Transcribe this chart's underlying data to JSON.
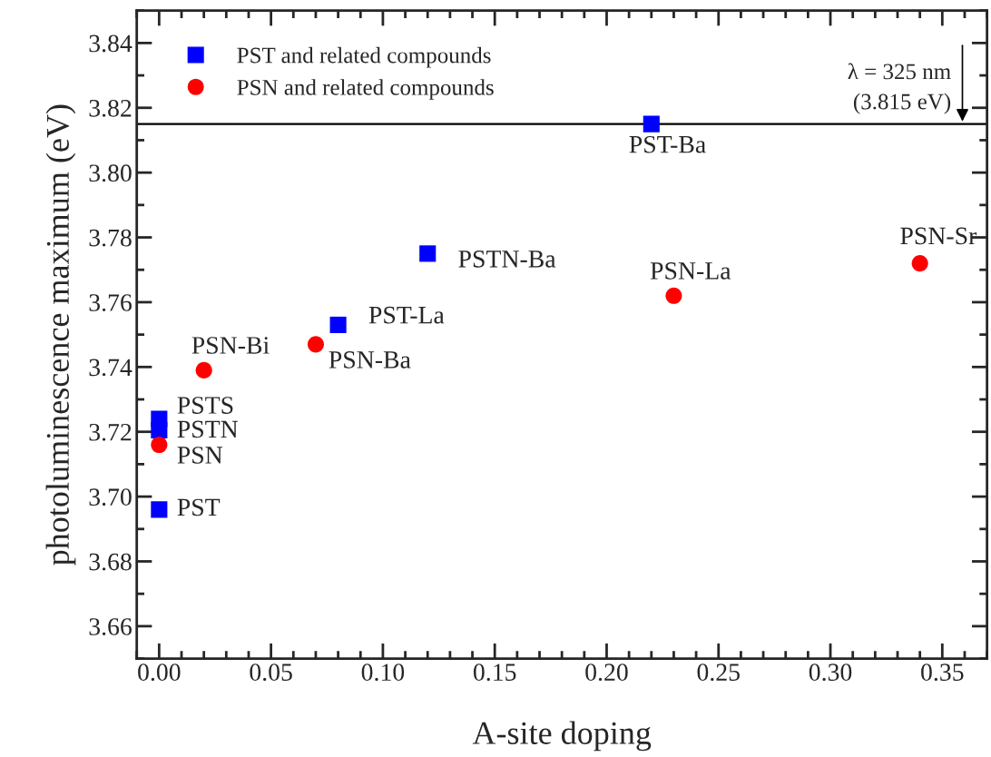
{
  "chart_data": {
    "type": "scatter",
    "xlabel": "A-site doping",
    "ylabel": "photoluminescence maximum (eV)",
    "xlim": [
      -0.01,
      0.37
    ],
    "xticks": [
      {
        "value": 0,
        "label": "0.00"
      },
      0.05,
      {
        "value": 0.1,
        "label": "0.10"
      },
      0.15,
      {
        "value": 0.2,
        "label": "0.20"
      },
      0.25,
      {
        "value": 0.3,
        "label": "0.30"
      },
      0.35
    ],
    "ylim": [
      3.65,
      3.85
    ],
    "yticks": [
      {
        "value": 3.66,
        "label": "3.66"
      },
      {
        "value": 3.68,
        "label": "3.68"
      },
      {
        "value": 3.7,
        "label": "3.70"
      },
      {
        "value": 3.72,
        "label": "3.72"
      },
      {
        "value": 3.74,
        "label": "3.74"
      },
      {
        "value": 3.76,
        "label": "3.76"
      },
      {
        "value": 3.78,
        "label": "3.78"
      },
      {
        "value": 3.8,
        "label": "3.80"
      },
      {
        "value": 3.82,
        "label": "3.82"
      },
      {
        "value": 3.84,
        "label": "3.84"
      }
    ],
    "legend": "top left",
    "grid": false,
    "series": [
      {
        "name": "PST and related compounds",
        "color": "#0000ff",
        "marker": "square",
        "x": [
          0,
          0,
          0,
          0.08,
          0.12,
          0.22
        ],
        "values": [
          3.696,
          3.7205,
          3.724,
          3.753,
          3.775,
          3.815
        ]
      },
      {
        "name": "PSN and related compounds",
        "color": "#ff0000",
        "marker": "circle",
        "x": [
          0,
          0.02,
          0.07,
          0.23,
          0.34
        ],
        "values": [
          3.716,
          3.739,
          3.747,
          3.762,
          3.772
        ]
      }
    ],
    "annotations": [
      {
        "text": "PST",
        "x": 0,
        "y": 3.696
      },
      {
        "text": "PSTN",
        "x": 0,
        "y": 3.7205
      },
      {
        "text": "PSTS",
        "x": 0,
        "y": 3.724
      },
      {
        "text": "PST-La",
        "x": 0.08,
        "y": 3.753
      },
      {
        "text": "PSTN-Ba",
        "x": 0.12,
        "y": 3.775
      },
      {
        "text": "PST-Ba",
        "x": 0.22,
        "y": 3.815
      },
      {
        "text": "PSN",
        "x": 0,
        "y": 3.716
      },
      {
        "text": "PSN-Bi",
        "x": 0.02,
        "y": 3.739
      },
      {
        "text": "PSN-Ba",
        "x": 0.07,
        "y": 3.747
      },
      {
        "text": "PSN-La",
        "x": 0.23,
        "y": 3.762
      },
      {
        "text": "PSN-Sr",
        "x": 0.34,
        "y": 3.772
      }
    ],
    "ref_lines": [
      {
        "axis": "y",
        "value": 3.815,
        "label": "λ = 325 nm\n(3.815 eV)",
        "color": "#000000",
        "line_style": "solid"
      }
    ]
  }
}
